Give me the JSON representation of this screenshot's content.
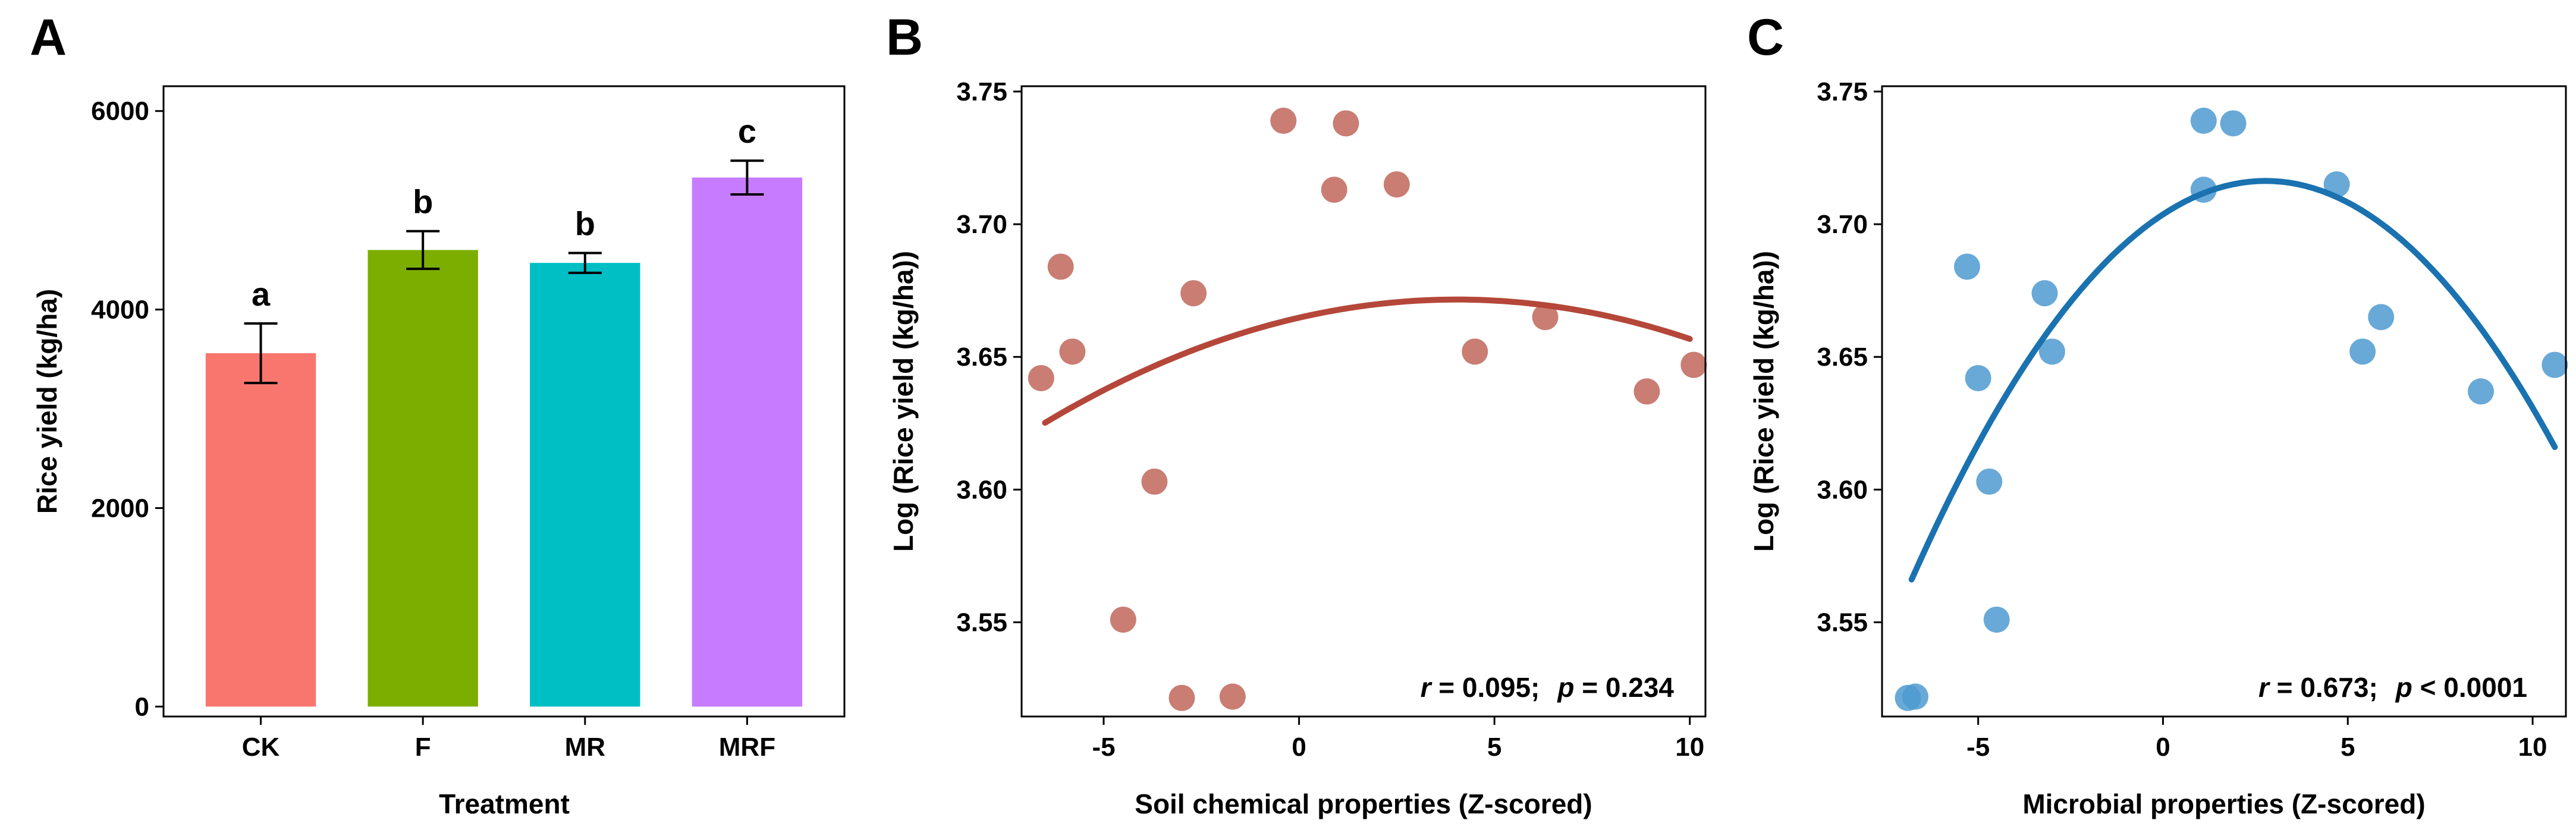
{
  "chart_data": [
    {
      "panel": "A",
      "type": "bar",
      "categories": [
        "CK",
        "F",
        "MR",
        "MRF"
      ],
      "values": [
        3560,
        4600,
        4470,
        5330
      ],
      "errors": [
        300,
        190,
        100,
        170
      ],
      "significance": [
        "a",
        "b",
        "b",
        "c"
      ],
      "colors": [
        "#F8766D",
        "#7CAE00",
        "#00BFC4",
        "#C77CFF"
      ],
      "xlabel": "Treatment",
      "ylabel": "Rice yield (kg/ha)",
      "ylim": [
        -100,
        6250
      ],
      "yticks": [
        0,
        2000,
        4000,
        6000
      ]
    },
    {
      "panel": "B",
      "type": "scatter",
      "xlabel": "Soil chemical properties (Z-scored)",
      "ylabel": "Log (Rice yield (kg/ha))",
      "xlim": [
        -7.1,
        10.4
      ],
      "ylim": [
        3.5145,
        3.752
      ],
      "xticks": [
        -5,
        0,
        5,
        10
      ],
      "yticks": [
        3.55,
        3.6,
        3.65,
        3.7,
        3.75
      ],
      "point_color": "#C0665A",
      "line_color": "#B5473A",
      "points": [
        [
          -6.6,
          3.642
        ],
        [
          -6.1,
          3.684
        ],
        [
          -5.8,
          3.652
        ],
        [
          -4.5,
          3.551
        ],
        [
          -3.7,
          3.603
        ],
        [
          -3.0,
          3.5215
        ],
        [
          -2.7,
          3.674
        ],
        [
          -1.7,
          3.522
        ],
        [
          -0.4,
          3.739
        ],
        [
          0.9,
          3.713
        ],
        [
          1.2,
          3.738
        ],
        [
          2.5,
          3.715
        ],
        [
          4.5,
          3.652
        ],
        [
          6.3,
          3.665
        ],
        [
          8.9,
          3.637
        ],
        [
          10.1,
          3.647
        ]
      ],
      "fit": {
        "x_range": [
          -6.5,
          10.0
        ],
        "quadratic": [
          3.66479,
          0.0033775,
          -0.000418
        ]
      },
      "stat_r": "r",
      "stat_r_value": " = 0.095;",
      "stat_p": "p",
      "stat_p_value": " = 0.234"
    },
    {
      "panel": "C",
      "type": "scatter",
      "xlabel": "Microbial properties (Z-scored)",
      "ylabel": "Log (Rice yield (kg/ha))",
      "xlim": [
        -7.6,
        10.9
      ],
      "ylim": [
        3.5145,
        3.752
      ],
      "xticks": [
        -5,
        0,
        5,
        10
      ],
      "yticks": [
        3.55,
        3.6,
        3.65,
        3.7,
        3.75
      ],
      "point_color": "#4E9AD0",
      "line_color": "#1A72B0",
      "points": [
        [
          -6.9,
          3.5215
        ],
        [
          -6.7,
          3.522
        ],
        [
          -5.3,
          3.684
        ],
        [
          -5.0,
          3.642
        ],
        [
          -4.7,
          3.603
        ],
        [
          -4.5,
          3.551
        ],
        [
          -3.2,
          3.674
        ],
        [
          -3.0,
          3.652
        ],
        [
          1.1,
          3.739
        ],
        [
          1.9,
          3.738
        ],
        [
          1.1,
          3.713
        ],
        [
          4.7,
          3.715
        ],
        [
          5.9,
          3.665
        ],
        [
          5.4,
          3.652
        ],
        [
          8.6,
          3.637
        ],
        [
          10.6,
          3.647
        ]
      ],
      "fit": {
        "x_range": [
          -6.8,
          10.6
        ],
        "quadratic": [
          3.7037,
          0.009092,
          -0.001638
        ]
      },
      "stat_r": "r",
      "stat_r_value": " = 0.673;",
      "stat_p": "p",
      "stat_p_value": " < 0.0001"
    }
  ],
  "panel_labels": [
    "A",
    "B",
    "C"
  ]
}
